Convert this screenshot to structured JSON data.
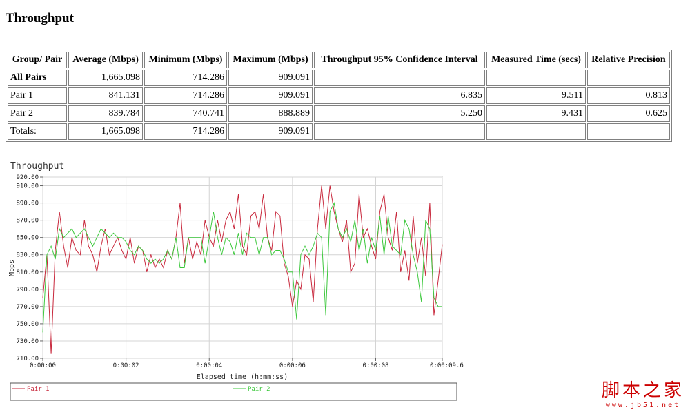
{
  "page": {
    "title": "Throughput"
  },
  "table": {
    "headers": [
      "Group/ Pair",
      "Average (Mbps)",
      "Minimum (Mbps)",
      "Maximum (Mbps)",
      "Throughput 95% Confidence Interval",
      "Measured Time (secs)",
      "Relative Precision"
    ],
    "rows": [
      [
        "All Pairs",
        "1,665.098",
        "714.286",
        "909.091",
        "",
        "",
        ""
      ],
      [
        "Pair 1",
        "841.131",
        "714.286",
        "909.091",
        "6.835",
        "9.511",
        "0.813"
      ],
      [
        "Pair 2",
        "839.784",
        "740.741",
        "888.889",
        "5.250",
        "9.431",
        "0.625"
      ],
      [
        "Totals:",
        "1,665.098",
        "714.286",
        "909.091",
        "",
        "",
        ""
      ]
    ]
  },
  "chart_data": {
    "type": "line",
    "title": "Throughput",
    "xlabel": "Elapsed time (h:mm:ss)",
    "ylabel": "Mbps",
    "xlim": [
      0,
      9.6
    ],
    "ylim": [
      710,
      920
    ],
    "x_ticks": [
      {
        "value": 0,
        "label": "0:00:00"
      },
      {
        "value": 2,
        "label": "0:00:02"
      },
      {
        "value": 4,
        "label": "0:00:04"
      },
      {
        "value": 6,
        "label": "0:00:06"
      },
      {
        "value": 8,
        "label": "0:00:08"
      },
      {
        "value": 9.6,
        "label": "0:00:09.6"
      }
    ],
    "y_ticks": [
      {
        "value": 710,
        "label": "710.00"
      },
      {
        "value": 730,
        "label": "730.00"
      },
      {
        "value": 750,
        "label": "750.00"
      },
      {
        "value": 770,
        "label": "770.00"
      },
      {
        "value": 790,
        "label": "790.00"
      },
      {
        "value": 810,
        "label": "810.00"
      },
      {
        "value": 830,
        "label": "830.00"
      },
      {
        "value": 850,
        "label": "850.00"
      },
      {
        "value": 870,
        "label": "870.00"
      },
      {
        "value": 890,
        "label": "890.00"
      },
      {
        "value": 910,
        "label": "910.00"
      },
      {
        "value": 920,
        "label": "920.00"
      }
    ],
    "grid": true,
    "legend_position": "bottom",
    "series": [
      {
        "name": "Pair 1",
        "color": "#c8283c",
        "points": [
          [
            0,
            780
          ],
          [
            0.1,
            830
          ],
          [
            0.2,
            715
          ],
          [
            0.3,
            835
          ],
          [
            0.4,
            880
          ],
          [
            0.5,
            840
          ],
          [
            0.6,
            815
          ],
          [
            0.7,
            850
          ],
          [
            0.8,
            835
          ],
          [
            0.9,
            830
          ],
          [
            1.0,
            870
          ],
          [
            1.1,
            840
          ],
          [
            1.2,
            830
          ],
          [
            1.3,
            810
          ],
          [
            1.4,
            840
          ],
          [
            1.5,
            860
          ],
          [
            1.6,
            830
          ],
          [
            1.7,
            840
          ],
          [
            1.8,
            850
          ],
          [
            1.9,
            835
          ],
          [
            2.0,
            825
          ],
          [
            2.1,
            850
          ],
          [
            2.2,
            820
          ],
          [
            2.3,
            840
          ],
          [
            2.4,
            835
          ],
          [
            2.5,
            810
          ],
          [
            2.6,
            830
          ],
          [
            2.7,
            815
          ],
          [
            2.8,
            825
          ],
          [
            2.9,
            815
          ],
          [
            3.0,
            835
          ],
          [
            3.1,
            825
          ],
          [
            3.2,
            850
          ],
          [
            3.3,
            890
          ],
          [
            3.4,
            820
          ],
          [
            3.5,
            850
          ],
          [
            3.6,
            825
          ],
          [
            3.7,
            845
          ],
          [
            3.8,
            830
          ],
          [
            3.9,
            870
          ],
          [
            4.0,
            850
          ],
          [
            4.1,
            840
          ],
          [
            4.2,
            870
          ],
          [
            4.3,
            845
          ],
          [
            4.4,
            870
          ],
          [
            4.5,
            880
          ],
          [
            4.6,
            860
          ],
          [
            4.7,
            900
          ],
          [
            4.8,
            840
          ],
          [
            4.9,
            830
          ],
          [
            5.0,
            875
          ],
          [
            5.1,
            880
          ],
          [
            5.2,
            860
          ],
          [
            5.3,
            900
          ],
          [
            5.4,
            850
          ],
          [
            5.5,
            835
          ],
          [
            5.6,
            880
          ],
          [
            5.7,
            875
          ],
          [
            5.8,
            820
          ],
          [
            5.9,
            805
          ],
          [
            6.0,
            770
          ],
          [
            6.1,
            800
          ],
          [
            6.2,
            790
          ],
          [
            6.3,
            830
          ],
          [
            6.4,
            825
          ],
          [
            6.5,
            775
          ],
          [
            6.6,
            860
          ],
          [
            6.7,
            910
          ],
          [
            6.8,
            860
          ],
          [
            6.9,
            910
          ],
          [
            7.0,
            880
          ],
          [
            7.1,
            860
          ],
          [
            7.2,
            845
          ],
          [
            7.3,
            870
          ],
          [
            7.4,
            810
          ],
          [
            7.5,
            820
          ],
          [
            7.6,
            900
          ],
          [
            7.7,
            850
          ],
          [
            7.8,
            860
          ],
          [
            7.9,
            840
          ],
          [
            8.0,
            825
          ],
          [
            8.1,
            880
          ],
          [
            8.2,
            900
          ],
          [
            8.3,
            850
          ],
          [
            8.4,
            835
          ],
          [
            8.5,
            880
          ],
          [
            8.6,
            810
          ],
          [
            8.7,
            835
          ],
          [
            8.8,
            800
          ],
          [
            8.9,
            875
          ],
          [
            9.0,
            820
          ],
          [
            9.1,
            850
          ],
          [
            9.2,
            805
          ],
          [
            9.3,
            890
          ],
          [
            9.4,
            760
          ],
          [
            9.5,
            800
          ],
          [
            9.6,
            842
          ]
        ]
      },
      {
        "name": "Pair 2",
        "color": "#3cc83c",
        "points": [
          [
            0,
            740
          ],
          [
            0.1,
            830
          ],
          [
            0.2,
            840
          ],
          [
            0.3,
            825
          ],
          [
            0.4,
            860
          ],
          [
            0.5,
            850
          ],
          [
            0.6,
            855
          ],
          [
            0.7,
            860
          ],
          [
            0.8,
            850
          ],
          [
            0.9,
            855
          ],
          [
            1.0,
            860
          ],
          [
            1.1,
            850
          ],
          [
            1.2,
            840
          ],
          [
            1.3,
            850
          ],
          [
            1.4,
            860
          ],
          [
            1.5,
            855
          ],
          [
            1.6,
            850
          ],
          [
            1.7,
            855
          ],
          [
            1.8,
            850
          ],
          [
            1.9,
            850
          ],
          [
            2.0,
            845
          ],
          [
            2.1,
            835
          ],
          [
            2.2,
            830
          ],
          [
            2.3,
            840
          ],
          [
            2.4,
            835
          ],
          [
            2.5,
            825
          ],
          [
            2.6,
            820
          ],
          [
            2.7,
            825
          ],
          [
            2.8,
            820
          ],
          [
            2.9,
            825
          ],
          [
            3.0,
            835
          ],
          [
            3.1,
            825
          ],
          [
            3.2,
            850
          ],
          [
            3.3,
            815
          ],
          [
            3.4,
            815
          ],
          [
            3.5,
            850
          ],
          [
            3.6,
            850
          ],
          [
            3.7,
            850
          ],
          [
            3.8,
            850
          ],
          [
            3.9,
            820
          ],
          [
            4.0,
            850
          ],
          [
            4.1,
            880
          ],
          [
            4.2,
            850
          ],
          [
            4.3,
            830
          ],
          [
            4.4,
            850
          ],
          [
            4.5,
            845
          ],
          [
            4.6,
            830
          ],
          [
            4.7,
            855
          ],
          [
            4.8,
            830
          ],
          [
            4.9,
            855
          ],
          [
            5.0,
            850
          ],
          [
            5.1,
            850
          ],
          [
            5.2,
            830
          ],
          [
            5.3,
            850
          ],
          [
            5.4,
            850
          ],
          [
            5.5,
            830
          ],
          [
            5.6,
            835
          ],
          [
            5.7,
            835
          ],
          [
            5.8,
            825
          ],
          [
            5.9,
            810
          ],
          [
            6.0,
            810
          ],
          [
            6.1,
            755
          ],
          [
            6.2,
            830
          ],
          [
            6.3,
            840
          ],
          [
            6.4,
            830
          ],
          [
            6.5,
            840
          ],
          [
            6.6,
            855
          ],
          [
            6.7,
            850
          ],
          [
            6.8,
            760
          ],
          [
            6.9,
            880
          ],
          [
            7.0,
            890
          ],
          [
            7.1,
            860
          ],
          [
            7.2,
            850
          ],
          [
            7.3,
            860
          ],
          [
            7.4,
            845
          ],
          [
            7.5,
            870
          ],
          [
            7.6,
            835
          ],
          [
            7.7,
            860
          ],
          [
            7.8,
            820
          ],
          [
            7.9,
            850
          ],
          [
            8.0,
            835
          ],
          [
            8.1,
            875
          ],
          [
            8.2,
            830
          ],
          [
            8.3,
            875
          ],
          [
            8.4,
            840
          ],
          [
            8.5,
            835
          ],
          [
            8.6,
            830
          ],
          [
            8.7,
            870
          ],
          [
            8.8,
            860
          ],
          [
            8.9,
            830
          ],
          [
            9.0,
            810
          ],
          [
            9.1,
            775
          ],
          [
            9.2,
            870
          ],
          [
            9.3,
            860
          ],
          [
            9.4,
            780
          ],
          [
            9.5,
            770
          ],
          [
            9.6,
            770
          ]
        ]
      }
    ]
  },
  "watermark": {
    "text": "脚本之家",
    "url": "www.jb51.net"
  }
}
